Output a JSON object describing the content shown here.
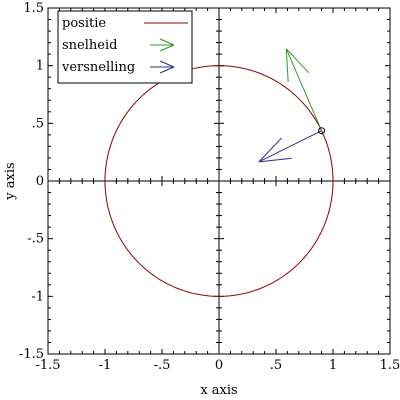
{
  "chart_data": {
    "type": "line",
    "title": "",
    "xlabel": "x axis",
    "ylabel": "y axis",
    "xlim": [
      -1.5,
      1.5
    ],
    "ylim": [
      -1.5,
      1.5
    ],
    "x_ticks": [
      {
        "value": -1.5,
        "label": "-1.5"
      },
      {
        "value": -1,
        "label": "-1"
      },
      {
        "value": -0.5,
        "label": "-.5"
      },
      {
        "value": 0,
        "label": "0"
      },
      {
        "value": 0.5,
        "label": ".5"
      },
      {
        "value": 1,
        "label": "1"
      },
      {
        "value": 1.5,
        "label": "1.5"
      }
    ],
    "y_ticks": [
      {
        "value": 1.5,
        "label": "1.5"
      },
      {
        "value": 1,
        "label": "1"
      },
      {
        "value": 0.5,
        "label": ".5"
      },
      {
        "value": 0,
        "label": "0"
      },
      {
        "value": -0.5,
        "label": "-.5"
      },
      {
        "value": -1,
        "label": "-1"
      },
      {
        "value": -1.5,
        "label": "-1.5"
      }
    ],
    "grid": false,
    "zero_axes": true,
    "legend_position": "top-left",
    "series": [
      {
        "name": "positie",
        "kind": "parametric-circle",
        "center": [
          0,
          0
        ],
        "radius": 1,
        "color": "#8b0000"
      },
      {
        "name": "snelheid",
        "kind": "vector",
        "origin": [
          0.9,
          0.436
        ],
        "vector": [
          -0.31,
          0.71
        ],
        "color": "#2e9b2e"
      },
      {
        "name": "versnelling",
        "kind": "vector",
        "origin": [
          0.9,
          0.436
        ],
        "vector": [
          -0.55,
          -0.27
        ],
        "color": "#27318f"
      }
    ],
    "point_marker": {
      "x": 0.9,
      "y": 0.436
    }
  }
}
